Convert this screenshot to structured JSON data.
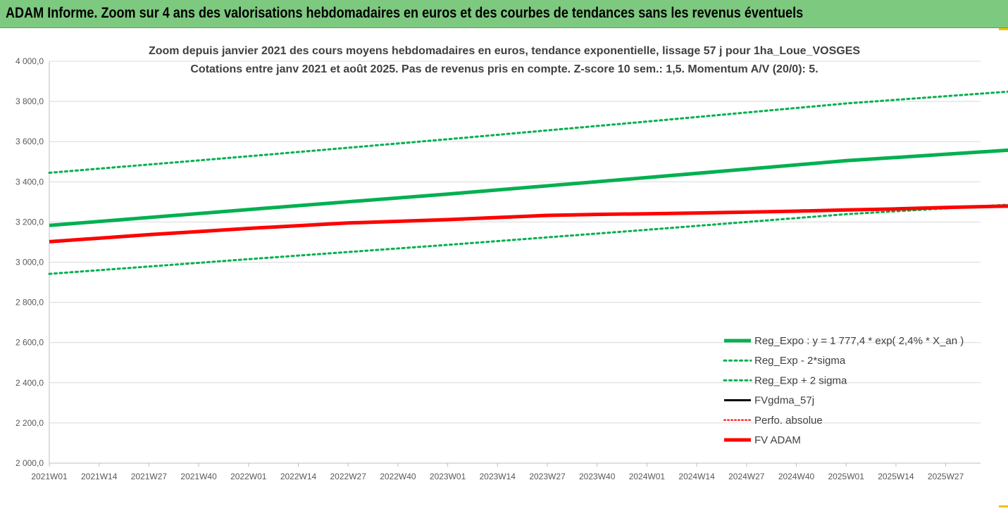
{
  "banner": {
    "title": "ADAM Informe. Zoom sur 4 ans des valorisations hebdomadaires en euros et des courbes de tendances sans les revenus éventuels"
  },
  "colors": {
    "banner_bg": "#7dc97f",
    "trend_green": "#00b050",
    "adam_red": "#ff0000",
    "gdma_black": "#000000",
    "grid": "#d9d9d9"
  },
  "chart_data": {
    "type": "line",
    "title": "Zoom depuis janvier 2021 des cours moyens hebdomadaires en euros, tendance exponentielle, lissage 57 j pour 1ha_Loue_VOSGES",
    "subtitle": "Cotations entre janv 2021 et août 2025.  Pas de revenus pris en compte. Z-score 10 sem.: 1,5. Momentum A/V (20/0): 5.",
    "xlabel": "",
    "ylabel": "",
    "ylim": [
      2000,
      4000
    ],
    "yticks": [
      "2 000,0",
      "2 200,0",
      "2 400,0",
      "2 600,0",
      "2 800,0",
      "3 000,0",
      "3 200,0",
      "3 400,0",
      "3 600,0",
      "3 800,0",
      "4 000,0"
    ],
    "categories": [
      "2021W01",
      "2021W14",
      "2021W27",
      "2021W40",
      "2022W01",
      "2022W14",
      "2022W27",
      "2022W40",
      "2023W01",
      "2023W14",
      "2023W27",
      "2023W40",
      "2024W01",
      "2024W14",
      "2024W27",
      "2024W40",
      "2025W01",
      "2025W14",
      "2025W27"
    ],
    "x_last": 19.6,
    "grid": true,
    "legend_position": "bottom-right",
    "series": [
      {
        "name": "Reg_Expo : y = 1 777,4 * exp( 2,4% *  X_an )",
        "style": "solid-thick",
        "color": "#00b050",
        "points": [
          [
            0,
            3183
          ],
          [
            4,
            3262
          ],
          [
            8,
            3339
          ],
          [
            12,
            3421
          ],
          [
            16,
            3505
          ],
          [
            19.6,
            3563
          ]
        ]
      },
      {
        "name": "Reg_Exp - 2*sigma",
        "style": "dotted",
        "color": "#00b050",
        "points": [
          [
            0,
            2942
          ],
          [
            4,
            3015
          ],
          [
            8,
            3086
          ],
          [
            12,
            3161
          ],
          [
            16,
            3239
          ],
          [
            19.6,
            3291
          ]
        ]
      },
      {
        "name": "Reg_Exp + 2 sigma",
        "style": "dotted",
        "color": "#00b050",
        "points": [
          [
            0,
            3445
          ],
          [
            4,
            3527
          ],
          [
            8,
            3612
          ],
          [
            12,
            3700
          ],
          [
            16,
            3790
          ],
          [
            19.6,
            3855
          ]
        ]
      },
      {
        "name": "FVgdma_57j",
        "style": "solid",
        "color": "#000000",
        "points": []
      },
      {
        "name": "Perfo. absolue",
        "style": "dotted-thin",
        "color": "#ff0000",
        "points": []
      },
      {
        "name": "FV ADAM",
        "style": "solid-thick",
        "color": "#ff0000",
        "points": [
          [
            0,
            3102
          ],
          [
            2,
            3137
          ],
          [
            4,
            3168
          ],
          [
            6,
            3195
          ],
          [
            8,
            3212
          ],
          [
            10,
            3233
          ],
          [
            11,
            3238
          ],
          [
            12,
            3241
          ],
          [
            13,
            3245
          ],
          [
            14,
            3249
          ],
          [
            15,
            3254
          ],
          [
            16,
            3260
          ],
          [
            17,
            3265
          ],
          [
            18,
            3272
          ],
          [
            19,
            3278
          ],
          [
            19.6,
            3280
          ]
        ]
      }
    ]
  }
}
